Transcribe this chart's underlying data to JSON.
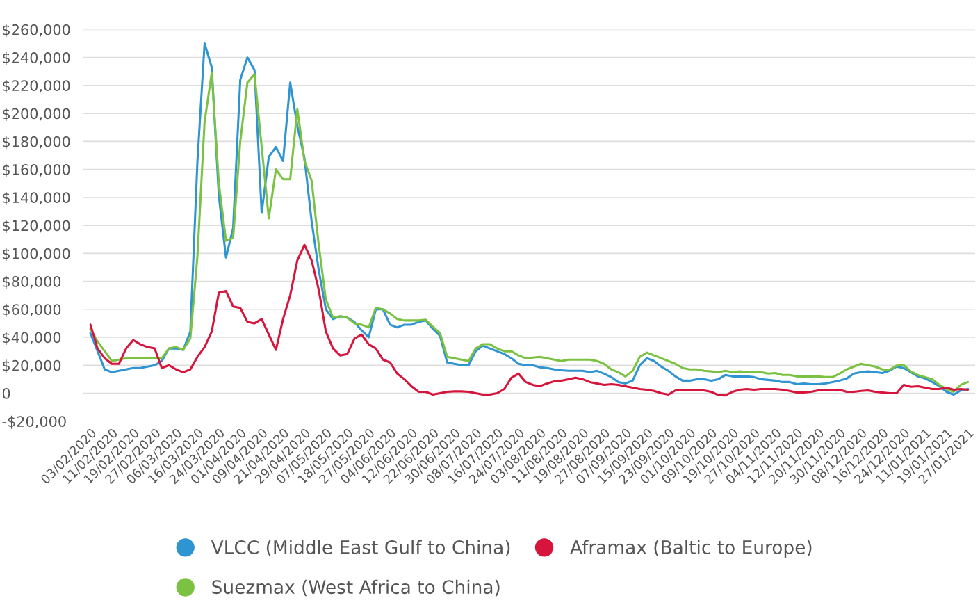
{
  "chart_data": {
    "type": "line",
    "categories": [
      "03/02/2020",
      null,
      null,
      "11/02/2020",
      null,
      null,
      "19/02/2020",
      null,
      null,
      "27/02/2020",
      null,
      null,
      "06/03/2020",
      null,
      null,
      "16/03/2020",
      null,
      null,
      "24/03/2020",
      null,
      null,
      "01/04/2020",
      null,
      null,
      "09/04/2020",
      null,
      null,
      "21/04/2020",
      null,
      null,
      "29/04/2020",
      null,
      null,
      "07/05/2020",
      null,
      null,
      "18/05/2020",
      null,
      null,
      "27/05/2020",
      null,
      null,
      "04/06/2020",
      null,
      null,
      "12/06/2020",
      null,
      null,
      "22/06/2020",
      null,
      null,
      "30/06/2020",
      null,
      null,
      "08/07/2020",
      null,
      null,
      "16/07/2020",
      null,
      null,
      "24/07/2020",
      null,
      null,
      "03/08/2020",
      null,
      null,
      "11/08/2020",
      null,
      null,
      "19/08/2020",
      null,
      null,
      "27/08/2020",
      null,
      null,
      "07/09/2020",
      null,
      null,
      "15/09/2020",
      null,
      null,
      "23/09/2020",
      null,
      null,
      "01/10/2020",
      null,
      null,
      "09/10/2020",
      null,
      null,
      "19/10/2020",
      null,
      null,
      "27/10/2020",
      null,
      null,
      "04/11/2020",
      null,
      null,
      "12/11/2020",
      null,
      null,
      "20/11/2020",
      null,
      null,
      "30/11/2020",
      null,
      null,
      "08/12/2020",
      null,
      null,
      "16/12/2020",
      null,
      null,
      "24/12/2020",
      null,
      null,
      "11/01/2021",
      null,
      null,
      "19/01/2021",
      null,
      null,
      "27/01/2021"
    ],
    "series": [
      {
        "name": "VLCC (Middle East Gulf to China)",
        "color": "#2e94d2",
        "values": [
          43000,
          30000,
          17000,
          15000,
          16000,
          17000,
          18000,
          18000,
          19000,
          20000,
          23000,
          32000,
          32000,
          31000,
          44000,
          166000,
          250000,
          233000,
          141000,
          97000,
          118000,
          224000,
          240000,
          231000,
          129000,
          169000,
          176000,
          166000,
          222000,
          191000,
          168000,
          123000,
          88000,
          60000,
          53000,
          55000,
          54000,
          51000,
          45000,
          40000,
          60000,
          60000,
          49000,
          47000,
          49000,
          49000,
          51000,
          52000,
          46000,
          41000,
          22000,
          21000,
          20000,
          20000,
          30000,
          34000,
          32000,
          30000,
          28000,
          25000,
          21000,
          20000,
          20000,
          18500,
          18000,
          17000,
          16400,
          16000,
          16000,
          16000,
          15000,
          16000,
          14000,
          11500,
          8000,
          7000,
          9000,
          20000,
          25000,
          23000,
          19000,
          16000,
          12000,
          9000,
          9000,
          10000,
          10000,
          9000,
          10000,
          13000,
          12000,
          12000,
          12000,
          11500,
          10000,
          9500,
          9000,
          8000,
          8000,
          6500,
          7000,
          6500,
          6500,
          7000,
          8000,
          9000,
          10500,
          14000,
          15000,
          15600,
          15000,
          14400,
          16000,
          19000,
          18000,
          15000,
          12000,
          10500,
          8000,
          5000,
          1000,
          -1000,
          2000,
          3000
        ]
      },
      {
        "name": "Suezmax (West Africa to China)",
        "color": "#7cc242",
        "values": [
          46000,
          37000,
          30000,
          23000,
          24000,
          25000,
          25000,
          25000,
          25000,
          25000,
          25000,
          32000,
          33000,
          31000,
          39000,
          98000,
          194000,
          229000,
          150000,
          109000,
          111000,
          180000,
          222000,
          228000,
          176000,
          125000,
          160000,
          153000,
          153000,
          203000,
          166000,
          152000,
          106000,
          67000,
          54000,
          55000,
          54000,
          50000,
          49000,
          47000,
          61000,
          60000,
          57000,
          53000,
          52000,
          52000,
          52000,
          52500,
          47500,
          43000,
          26000,
          25000,
          24000,
          23000,
          32000,
          35000,
          35000,
          32000,
          30000,
          30000,
          27000,
          25000,
          25500,
          26000,
          25000,
          24000,
          23000,
          24000,
          24000,
          24000,
          24000,
          23000,
          21000,
          17000,
          15000,
          12000,
          16000,
          26000,
          29000,
          27000,
          25000,
          23000,
          21000,
          18000,
          17000,
          17000,
          16000,
          15600,
          15000,
          16000,
          15000,
          15600,
          15000,
          15000,
          15000,
          14000,
          14400,
          13000,
          13000,
          12000,
          12000,
          12000,
          12000,
          11500,
          11500,
          14000,
          17000,
          19000,
          21000,
          20000,
          19000,
          17000,
          16700,
          19700,
          20000,
          15600,
          13000,
          11500,
          10000,
          6000,
          3000,
          1000,
          6000,
          8000
        ]
      },
      {
        "name": "Aframax (Baltic to Europe)",
        "color": "#d6143c",
        "values": [
          49000,
          32000,
          25000,
          21000,
          21000,
          32000,
          38000,
          35000,
          33000,
          32000,
          18000,
          20000,
          17000,
          15000,
          17000,
          26000,
          33000,
          44000,
          72000,
          73000,
          62000,
          61000,
          51000,
          50000,
          53000,
          42000,
          31000,
          53000,
          70000,
          95000,
          106000,
          95000,
          74000,
          44000,
          32000,
          27000,
          28000,
          39000,
          42000,
          35000,
          32000,
          24000,
          22000,
          14000,
          10000,
          5000,
          1000,
          1000,
          -1000,
          0,
          1000,
          1300,
          1300,
          1000,
          0,
          -1000,
          -1000,
          0,
          3000,
          11000,
          14000,
          8000,
          6000,
          5000,
          7000,
          8500,
          9000,
          10000,
          11000,
          10000,
          8000,
          7000,
          6000,
          6500,
          6000,
          5000,
          4000,
          3000,
          2500,
          1600,
          0,
          -1000,
          2000,
          2500,
          2500,
          2500,
          2000,
          1000,
          -1300,
          -1600,
          1000,
          2500,
          3000,
          2500,
          3000,
          3000,
          3000,
          2500,
          1600,
          500,
          500,
          1000,
          2000,
          2500,
          2000,
          2500,
          1000,
          1000,
          1600,
          2000,
          1000,
          500,
          0,
          0,
          6000,
          4600,
          5000,
          4000,
          3000,
          3000,
          4000,
          2500,
          3000,
          2500
        ]
      }
    ],
    "ylim": [
      -20000,
      260000
    ],
    "yticks": [
      {
        "value": -20000,
        "label": "-$20,000"
      },
      0,
      {
        "value": 20000,
        "label": "$20,000"
      },
      {
        "value": 40000,
        "label": "$40,000"
      },
      {
        "value": 60000,
        "label": "$60,000"
      },
      {
        "value": 80000,
        "label": "$80,000"
      },
      {
        "value": 100000,
        "label": "$100,000"
      },
      {
        "value": 120000,
        "label": "$120,000"
      },
      {
        "value": 140000,
        "label": "$140,000"
      },
      {
        "value": 160000,
        "label": "$160,000"
      },
      {
        "value": 180000,
        "label": "$180,000"
      },
      {
        "value": 200000,
        "label": "$200,000"
      },
      {
        "value": 220000,
        "label": "$220,000"
      },
      {
        "value": 240000,
        "label": "$240,000"
      },
      {
        "value": 260000,
        "label": "$260,000"
      }
    ],
    "grid": "y",
    "legend": "bottom"
  }
}
